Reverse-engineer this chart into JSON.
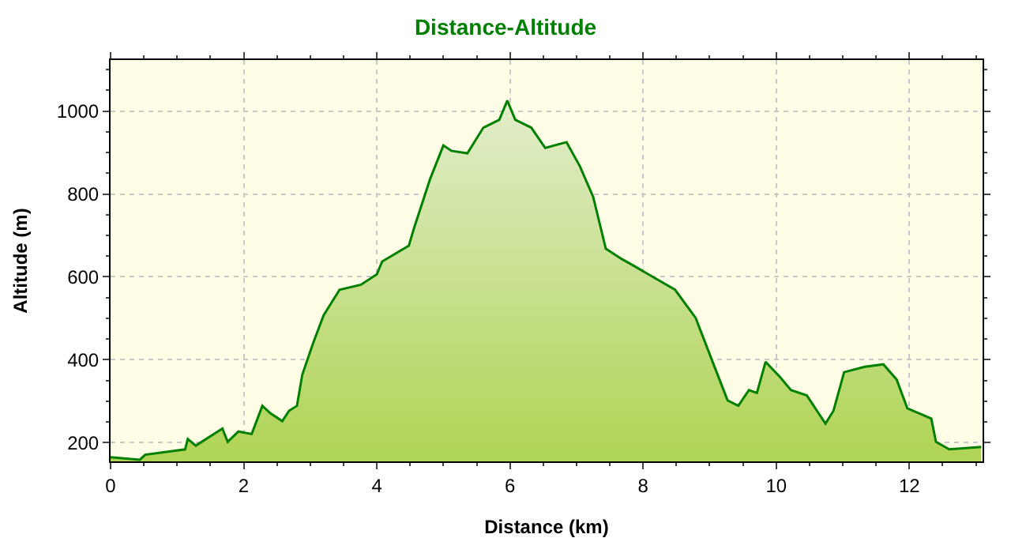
{
  "chart_data": {
    "type": "area",
    "title": "Distance-Altitude",
    "xlabel": "Distance (km)",
    "ylabel": "Altitude (m)",
    "x": [
      0,
      0.44,
      0.52,
      1.12,
      1.16,
      1.28,
      1.68,
      1.76,
      1.92,
      2.12,
      2.28,
      2.4,
      2.58,
      2.68,
      2.8,
      2.88,
      3.04,
      3.2,
      3.44,
      3.76,
      4.0,
      4.08,
      4.48,
      4.56,
      4.8,
      5.0,
      5.12,
      5.36,
      5.6,
      5.84,
      5.96,
      6.08,
      6.32,
      6.53,
      6.85,
      7.05,
      7.25,
      7.44,
      7.68,
      7.88,
      8.08,
      8.48,
      8.79,
      9.03,
      9.27,
      9.43,
      9.59,
      9.71,
      9.84,
      10.06,
      10.22,
      10.46,
      10.74,
      10.86,
      11.02,
      11.33,
      11.61,
      11.81,
      11.97,
      12.33,
      12.4,
      12.6,
      13.08
    ],
    "series": [
      {
        "color": "#008000",
        "values": [
          165,
          159,
          171,
          184,
          209,
          193,
          234,
          202,
          227,
          221,
          289,
          271,
          252,
          277,
          289,
          364,
          439,
          507,
          569,
          581,
          606,
          637,
          675,
          718,
          836,
          917,
          904,
          898,
          960,
          979,
          1025,
          979,
          960,
          911,
          925,
          867,
          793,
          668,
          643,
          625,
          606,
          569,
          501,
          401,
          302,
          289,
          327,
          320,
          395,
          358,
          327,
          314,
          246,
          277,
          370,
          383,
          389,
          352,
          283,
          258,
          202,
          184,
          190
        ]
      }
    ],
    "xlim": [
      0,
      13.1
    ],
    "ylim": [
      155,
      1123
    ],
    "xticks": [
      0,
      2,
      4,
      6,
      8,
      10,
      12
    ],
    "yticks": [
      200,
      400,
      600,
      800,
      1000
    ],
    "grid": true,
    "marker": "none",
    "line_style": "solid"
  }
}
